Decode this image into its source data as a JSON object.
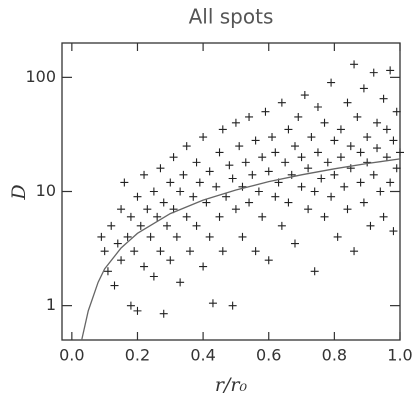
{
  "chart_data": {
    "type": "scatter",
    "title": "All spots",
    "x_label": "r/r₀",
    "y_label": "D",
    "log_y": true,
    "xlim": [
      -0.03,
      1.0
    ],
    "ylim": [
      0.5,
      200
    ],
    "xticks": [
      {
        "value": 0,
        "label": "0.0"
      },
      {
        "value": 0.2,
        "label": "0.2"
      },
      {
        "value": 0.4,
        "label": "0.4"
      },
      {
        "value": 0.6,
        "label": "0.6"
      },
      {
        "value": 0.8,
        "label": "0.8"
      },
      {
        "value": 1,
        "label": "1.0"
      }
    ],
    "yticks": [
      1,
      10,
      100
    ],
    "marker_color": "#222222",
    "curve_color": "#666666",
    "points": {
      "x": [
        0.09,
        0.1,
        0.11,
        0.12,
        0.13,
        0.14,
        0.15,
        0.15,
        0.16,
        0.17,
        0.18,
        0.18,
        0.19,
        0.2,
        0.2,
        0.21,
        0.22,
        0.22,
        0.23,
        0.24,
        0.25,
        0.25,
        0.26,
        0.27,
        0.27,
        0.28,
        0.28,
        0.29,
        0.3,
        0.3,
        0.31,
        0.31,
        0.32,
        0.33,
        0.33,
        0.34,
        0.35,
        0.35,
        0.36,
        0.37,
        0.38,
        0.38,
        0.39,
        0.4,
        0.4,
        0.41,
        0.42,
        0.42,
        0.43,
        0.44,
        0.45,
        0.45,
        0.46,
        0.46,
        0.47,
        0.48,
        0.49,
        0.49,
        0.5,
        0.5,
        0.51,
        0.52,
        0.52,
        0.53,
        0.54,
        0.54,
        0.55,
        0.56,
        0.56,
        0.57,
        0.58,
        0.58,
        0.59,
        0.6,
        0.6,
        0.61,
        0.62,
        0.62,
        0.63,
        0.64,
        0.64,
        0.65,
        0.66,
        0.66,
        0.67,
        0.68,
        0.68,
        0.69,
        0.7,
        0.7,
        0.71,
        0.72,
        0.72,
        0.73,
        0.74,
        0.74,
        0.75,
        0.75,
        0.76,
        0.77,
        0.77,
        0.78,
        0.79,
        0.79,
        0.8,
        0.8,
        0.81,
        0.82,
        0.82,
        0.83,
        0.84,
        0.84,
        0.85,
        0.85,
        0.86,
        0.86,
        0.87,
        0.88,
        0.88,
        0.89,
        0.89,
        0.9,
        0.9,
        0.91,
        0.92,
        0.92,
        0.93,
        0.93,
        0.94,
        0.95,
        0.95,
        0.96,
        0.96,
        0.97,
        0.97,
        0.98,
        0.98,
        0.99,
        0.99,
        1.0
      ],
      "y": [
        4,
        3,
        2,
        5,
        1.5,
        3.5,
        7,
        2.5,
        12,
        4,
        1,
        6,
        3,
        9,
        0.9,
        5,
        14,
        2.2,
        7,
        4,
        10,
        1.8,
        6,
        16,
        3,
        0.85,
        8,
        5,
        12,
        2.5,
        20,
        7,
        4,
        10,
        1.6,
        14,
        6,
        25,
        3,
        9,
        18,
        5,
        12,
        30,
        2.2,
        8,
        15,
        4,
        1.05,
        11,
        22,
        6,
        35,
        3,
        9,
        17,
        1,
        13,
        40,
        7,
        25,
        4,
        11,
        18,
        45,
        8,
        14,
        3,
        28,
        10,
        20,
        6,
        50,
        15,
        2.5,
        30,
        9,
        22,
        12,
        60,
        5,
        18,
        35,
        8,
        14,
        25,
        3.5,
        45,
        11,
        20,
        70,
        7,
        16,
        30,
        10,
        2,
        55,
        22,
        13,
        40,
        6,
        18,
        90,
        9,
        28,
        14,
        4,
        35,
        20,
        11,
        60,
        7,
        25,
        16,
        130,
        3,
        45,
        12,
        22,
        80,
        8,
        30,
        18,
        5,
        110,
        14,
        40,
        24,
        10,
        65,
        6,
        20,
        35,
        115,
        12,
        28,
        4.5,
        50,
        16,
        22
      ]
    },
    "curve": {
      "x": [
        0.03,
        0.05,
        0.08,
        0.1,
        0.15,
        0.2,
        0.3,
        0.4,
        0.5,
        0.6,
        0.7,
        0.8,
        0.9,
        1.0
      ],
      "y": [
        0.5,
        0.9,
        1.6,
        2.1,
        3.2,
        4.3,
        6.4,
        8.4,
        10.3,
        12.2,
        14,
        15.8,
        17.6,
        19.3
      ]
    }
  }
}
